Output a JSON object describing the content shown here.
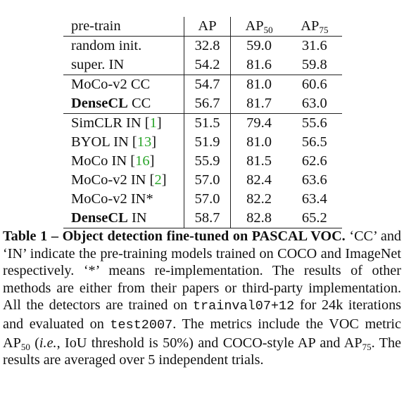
{
  "table": {
    "headers": {
      "method": "pre-train",
      "ap": "AP",
      "ap50_base": "AP",
      "ap50_sub": "50",
      "ap75_base": "AP",
      "ap75_sub": "75"
    },
    "groups": [
      [
        {
          "name": "random init.",
          "bold": "",
          "rest": "",
          "ref": "",
          "ap": "32.8",
          "ap50": "59.0",
          "ap75": "31.6"
        },
        {
          "name": "super. IN",
          "bold": "",
          "rest": "",
          "ref": "",
          "ap": "54.2",
          "ap50": "81.6",
          "ap75": "59.8"
        }
      ],
      [
        {
          "name": "",
          "bold": "",
          "rest": "MoCo-v2 CC",
          "ref": "",
          "ap": "54.7",
          "ap50": "81.0",
          "ap75": "60.6"
        },
        {
          "name": "",
          "bold": "DenseCL",
          "rest": " CC",
          "ref": "",
          "ap": "56.7",
          "ap50": "81.7",
          "ap75": "63.0"
        }
      ],
      [
        {
          "name": "",
          "bold": "",
          "rest": "SimCLR IN [",
          "ref": "1",
          "ap": "51.5",
          "ap50": "79.4",
          "ap75": "55.6"
        },
        {
          "name": "",
          "bold": "",
          "rest": "BYOL IN [",
          "ref": "13",
          "ap": "51.9",
          "ap50": "81.0",
          "ap75": "56.5"
        },
        {
          "name": "",
          "bold": "",
          "rest": "MoCo IN [",
          "ref": "16",
          "ap": "55.9",
          "ap50": "81.5",
          "ap75": "62.6"
        },
        {
          "name": "",
          "bold": "",
          "rest": "MoCo-v2 IN [",
          "ref": "2",
          "ap": "57.0",
          "ap50": "82.4",
          "ap75": "63.6"
        },
        {
          "name": "MoCo-v2 IN*",
          "bold": "",
          "rest": "",
          "ref": "",
          "ap": "57.0",
          "ap50": "82.2",
          "ap75": "63.4"
        },
        {
          "name": "",
          "bold": "DenseCL",
          "rest": " IN",
          "ref": "",
          "ap": "58.7",
          "ap50": "82.8",
          "ap75": "65.2"
        }
      ]
    ]
  },
  "caption": {
    "label": "Table 1 –",
    "title": "Object detection fine-tuned on PASCAL VOC.",
    "p1": "‘CC’ and ‘IN’ indicate the pre-training models trained on COCO and ImageNet respectively. ‘*’ means re-implementation. The results of other methods are either from their papers or third-party implementation. All the detectors are trained on",
    "code1": "trainval07+12",
    "p2": "for 24k iterations and evaluated on",
    "code2": "test2007",
    "p3": ". The metrics include the VOC metric AP",
    "sub1": "50",
    "p4": "(",
    "ie": "i.e.",
    "p5": ", IoU threshold is 50%) and COCO-style AP and AP",
    "sub2": "75",
    "p6": ". The results are averaged over 5 independent trials."
  }
}
